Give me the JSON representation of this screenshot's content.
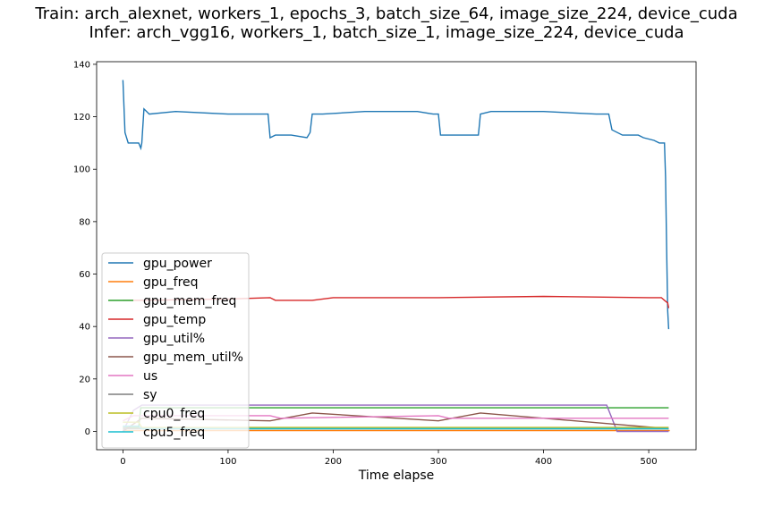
{
  "title": {
    "line1": "Train: arch_alexnet, workers_1, epochs_3, batch_size_64, image_size_224, device_cuda",
    "line2": "Infer: arch_vgg16, workers_1, batch_size_1, image_size_224, device_cuda"
  },
  "chart_data": {
    "type": "line",
    "title": "Train: arch_alexnet, workers_1, epochs_3, batch_size_64, image_size_224, device_cuda\nInfer: arch_vgg16, workers_1, batch_size_1, image_size_224, device_cuda",
    "xlabel": "Time elapse",
    "ylabel": "",
    "xlim": [
      -25,
      545
    ],
    "ylim": [
      -7,
      141
    ],
    "xticks": [
      0,
      100,
      200,
      300,
      400,
      500
    ],
    "yticks": [
      0,
      20,
      40,
      60,
      80,
      100,
      120,
      140
    ],
    "grid": false,
    "legend_position": "lower-left",
    "series": [
      {
        "name": "gpu_power",
        "color": "#1f77b4",
        "x": [
          0,
          2,
          5,
          10,
          15,
          17,
          18,
          20,
          25,
          50,
          100,
          120,
          130,
          138,
          140,
          145,
          160,
          175,
          178,
          180,
          190,
          230,
          280,
          295,
          300,
          302,
          310,
          330,
          338,
          340,
          350,
          400,
          450,
          462,
          465,
          475,
          485,
          490,
          495,
          505,
          510,
          513,
          515,
          516,
          517,
          518,
          519
        ],
        "y": [
          134,
          114,
          110,
          110,
          110,
          108,
          110,
          123,
          121,
          122,
          121,
          121,
          121,
          121,
          112,
          113,
          113,
          112,
          114,
          121,
          121,
          122,
          122,
          121,
          121,
          113,
          113,
          113,
          113,
          121,
          122,
          122,
          121,
          121,
          115,
          113,
          113,
          113,
          112,
          111,
          110,
          110,
          110,
          97,
          70,
          46,
          39
        ]
      },
      {
        "name": "gpu_freq",
        "color": "#ff7f0e",
        "x": [
          0,
          520
        ],
        "y": [
          0.3,
          0.3
        ]
      },
      {
        "name": "gpu_mem_freq",
        "color": "#2ca02c",
        "x": [
          0,
          15,
          17,
          519
        ],
        "y": [
          1.5,
          1.5,
          9,
          9
        ]
      },
      {
        "name": "gpu_temp",
        "color": "#d62728",
        "x": [
          0,
          20,
          100,
          140,
          145,
          180,
          200,
          300,
          400,
          500,
          512,
          515,
          518,
          519
        ],
        "y": [
          50,
          50,
          50.5,
          51,
          50,
          50,
          51,
          51,
          51.5,
          51,
          51,
          50,
          49,
          47
        ]
      },
      {
        "name": "gpu_util%",
        "color": "#9467bd",
        "x": [
          0,
          10,
          18,
          140,
          180,
          300,
          340,
          460,
          470,
          519
        ],
        "y": [
          0,
          8,
          10,
          10,
          10,
          10,
          10,
          10,
          0,
          0
        ]
      },
      {
        "name": "gpu_mem_util%",
        "color": "#8c564b",
        "x": [
          0,
          18,
          140,
          180,
          300,
          340,
          460,
          519
        ],
        "y": [
          0,
          5,
          4,
          7,
          4,
          7,
          3,
          1
        ]
      },
      {
        "name": "us",
        "color": "#e377c2",
        "x": [
          0,
          10,
          140,
          150,
          300,
          310,
          460,
          519
        ],
        "y": [
          4,
          6,
          6,
          5,
          6,
          5,
          5,
          5
        ]
      },
      {
        "name": "sy",
        "color": "#7f7f7f",
        "x": [
          0,
          519
        ],
        "y": [
          1,
          1
        ]
      },
      {
        "name": "cpu0_freq",
        "color": "#bcbd22",
        "x": [
          0,
          15,
          18,
          519
        ],
        "y": [
          3.5,
          3.5,
          1.5,
          1.5
        ]
      },
      {
        "name": "cpu5_freq",
        "color": "#17becf",
        "x": [
          0,
          15,
          18,
          519
        ],
        "y": [
          2,
          2,
          1,
          1
        ]
      }
    ]
  }
}
